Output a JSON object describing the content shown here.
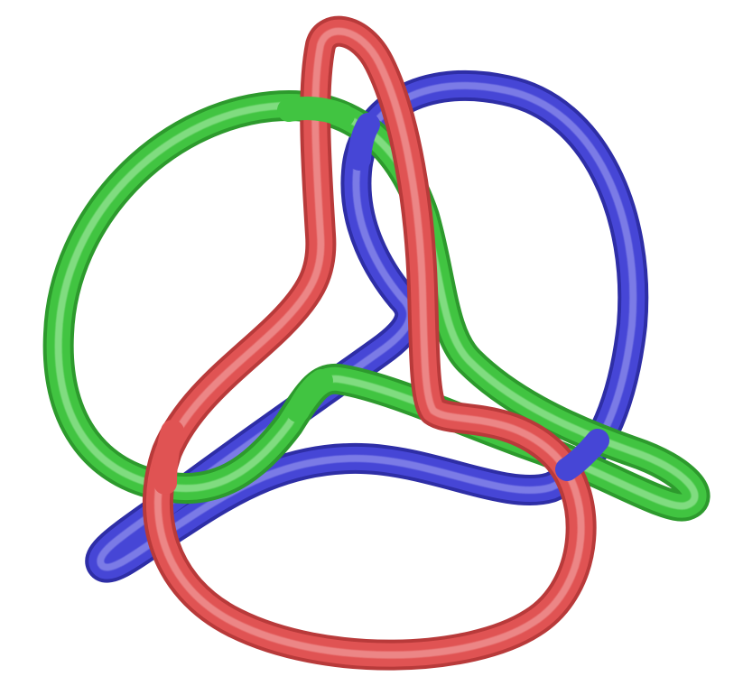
{
  "figure": {
    "background": "#ffffff",
    "loops": [
      {
        "name": "red-loop",
        "color": "#e05353",
        "shade": "#b83a3a",
        "highlight": "#f7b0b0"
      },
      {
        "name": "green-loop",
        "color": "#41c441",
        "shade": "#2d9a2d",
        "highlight": "#b4f0b4"
      },
      {
        "name": "blue-loop",
        "color": "#4646d6",
        "shade": "#2e2ea6",
        "highlight": "#a8a8f4"
      }
    ]
  }
}
